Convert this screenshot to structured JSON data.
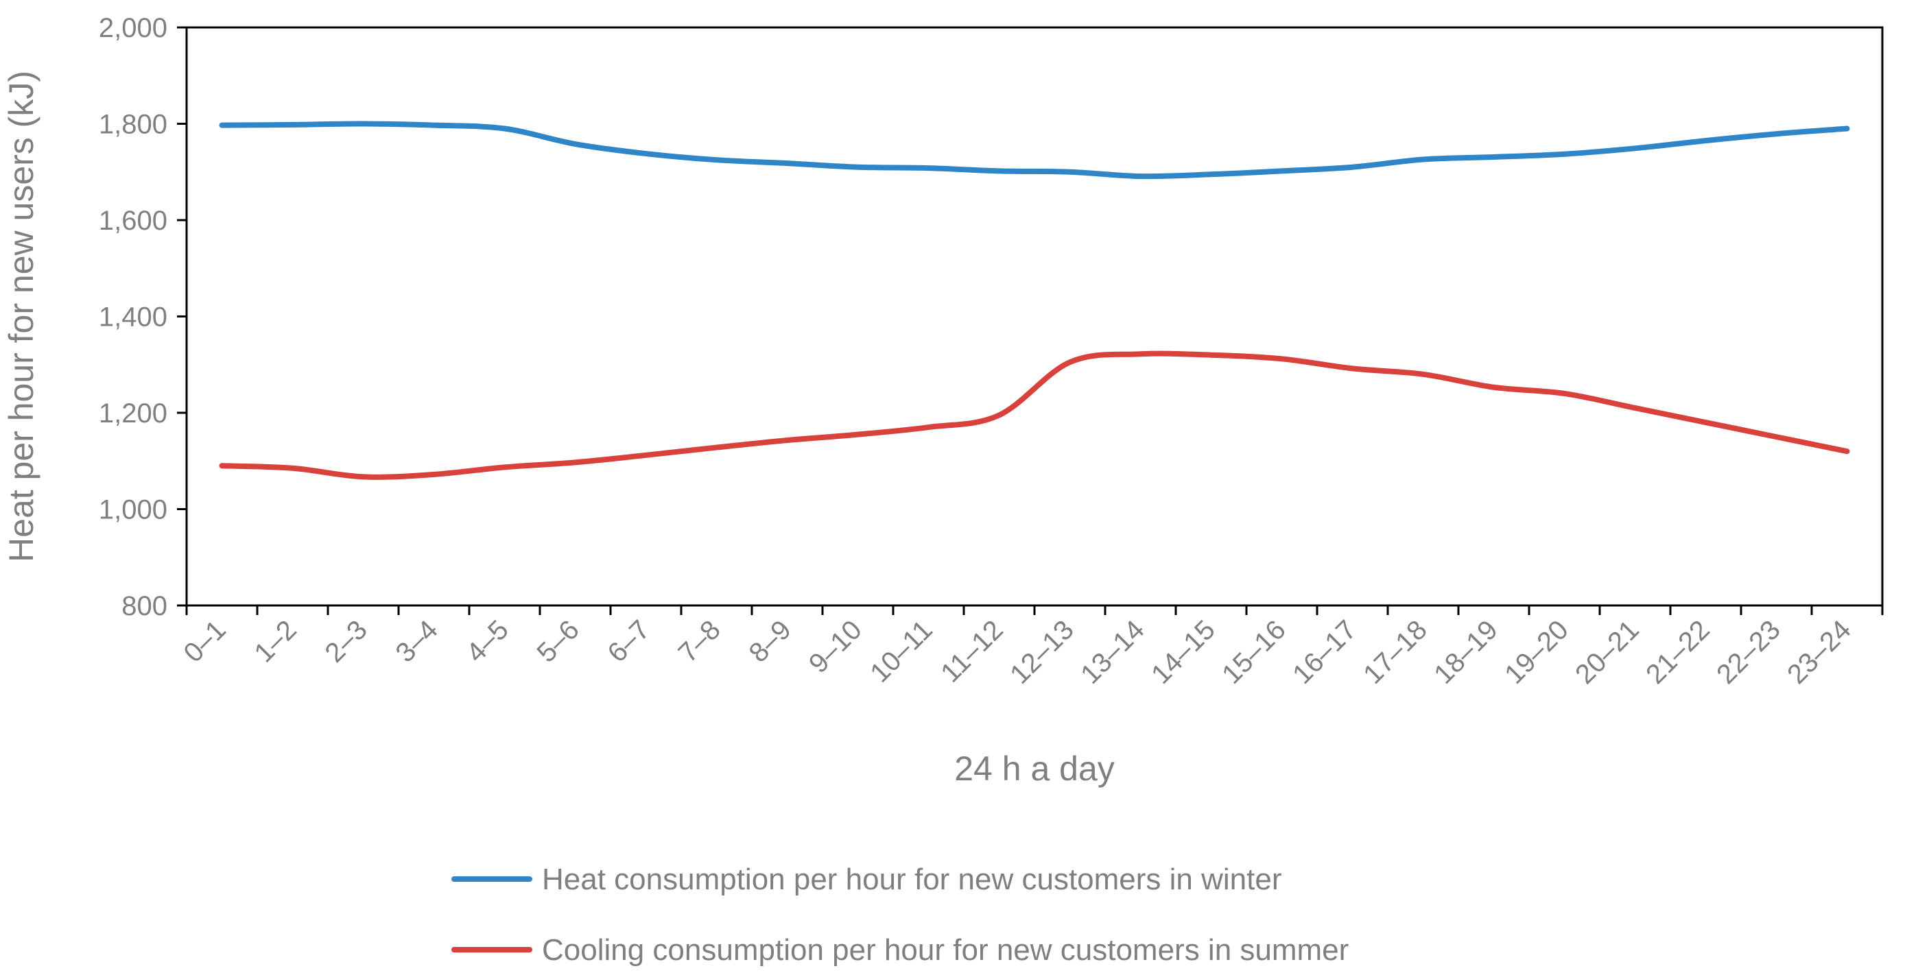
{
  "chart_data": {
    "type": "line",
    "title": "",
    "xlabel": "24 h a day",
    "ylabel": "Heat per hour for new users (kJ)",
    "ylim": [
      800,
      2000
    ],
    "yticks": [
      800,
      1000,
      1200,
      1400,
      1600,
      1800,
      2000
    ],
    "ytick_labels": [
      "800",
      "1,000",
      "1,200",
      "1,400",
      "1,600",
      "1,800",
      "2,000"
    ],
    "grid": false,
    "legend_position": "bottom",
    "categories": [
      "0–1",
      "1–2",
      "2–3",
      "3–4",
      "4–5",
      "5–6",
      "6–7",
      "7–8",
      "8–9",
      "9–10",
      "10–11",
      "11–12",
      "12–13",
      "13–14",
      "14–15",
      "15–16",
      "16–17",
      "17–18",
      "18–19",
      "19–20",
      "20–21",
      "21–22",
      "22–23",
      "23–24"
    ],
    "series": [
      {
        "name": "Heat consumption per hour for new customers in winter",
        "color": "#2e86c8",
        "values": [
          1797,
          1798,
          1800,
          1797,
          1790,
          1758,
          1738,
          1725,
          1718,
          1710,
          1708,
          1702,
          1700,
          1691,
          1695,
          1702,
          1710,
          1726,
          1731,
          1737,
          1749,
          1765,
          1779,
          1790
        ]
      },
      {
        "name": "Cooling consumption per hour for new customers in summer",
        "color": "#d9413c",
        "values": [
          1090,
          1085,
          1067,
          1072,
          1087,
          1097,
          1112,
          1128,
          1143,
          1155,
          1170,
          1195,
          1305,
          1322,
          1320,
          1312,
          1292,
          1280,
          1253,
          1240,
          1210,
          1180,
          1150,
          1120
        ]
      }
    ]
  }
}
